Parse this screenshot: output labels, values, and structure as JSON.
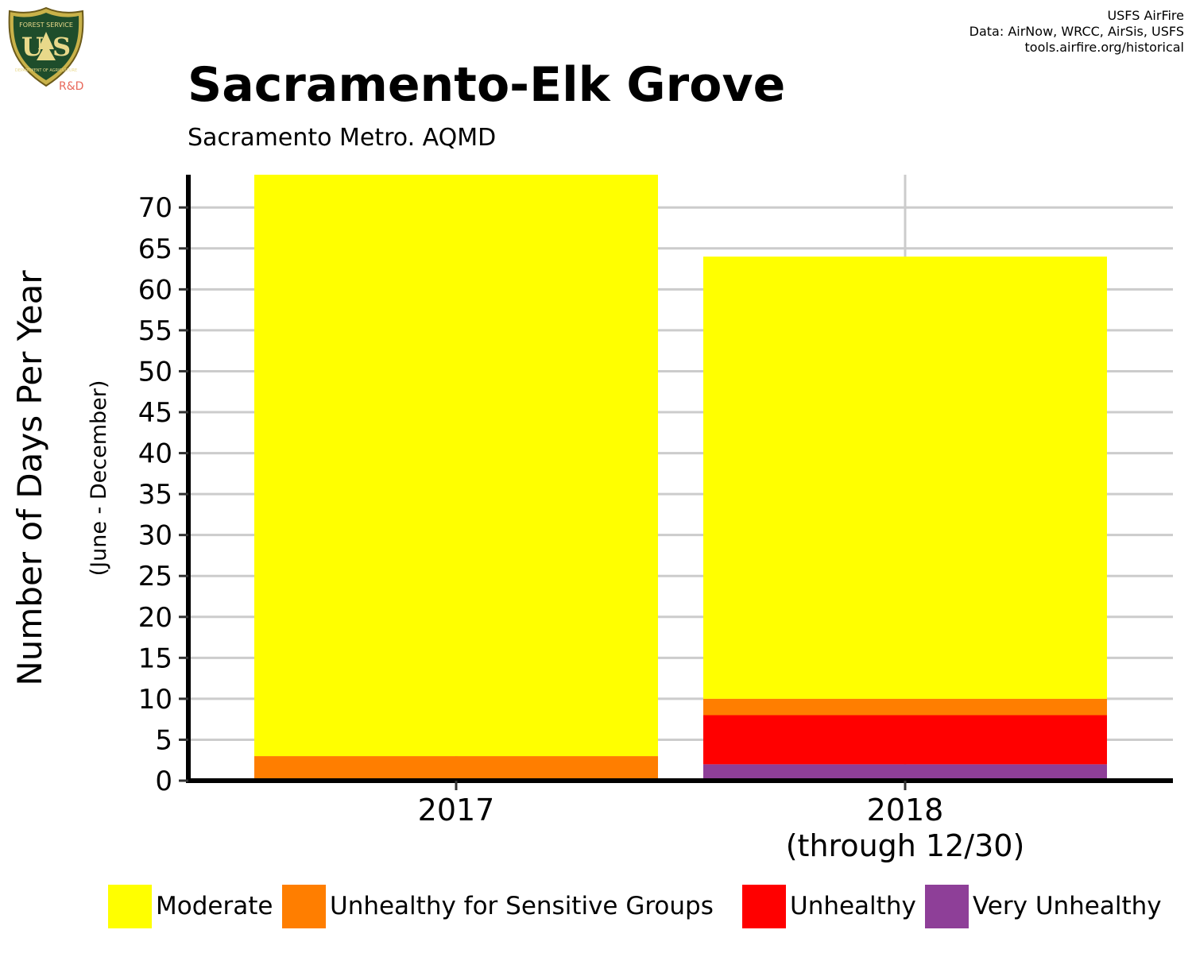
{
  "header": {
    "logo_text": "U S",
    "logo_arc_top": "FOREST SERVICE",
    "logo_arc_bottom": "DEPARTMENT OF AGRICULTURE",
    "logo_suffix": "R&D",
    "credits": [
      "USFS AirFire",
      "Data: AirNow, WRCC, AirSis, USFS",
      "tools.airfire.org/historical"
    ]
  },
  "chart_data": {
    "type": "bar",
    "stacked": true,
    "title": "Sacramento-Elk Grove",
    "subtitle": "Sacramento Metro. AQMD",
    "ylabel": "Number of Days Per Year",
    "ylabel_sub": "(June - December)",
    "categories": [
      [
        "2017"
      ],
      [
        "2018",
        "(through 12/30)"
      ]
    ],
    "ylim": [
      0,
      74
    ],
    "yticks": [
      0,
      5,
      10,
      15,
      20,
      25,
      30,
      35,
      40,
      45,
      50,
      55,
      60,
      65,
      70
    ],
    "grid": true,
    "legend_position": "bottom",
    "series": [
      {
        "name": "Very Unhealthy",
        "color": "#8e3f98",
        "values": [
          0,
          2
        ]
      },
      {
        "name": "Unhealthy",
        "color": "#ff0000",
        "values": [
          0,
          6
        ]
      },
      {
        "name": "Unhealthy for Sensitive Groups",
        "color": "#ff7e00",
        "values": [
          3,
          2
        ]
      },
      {
        "name": "Moderate",
        "color": "#ffff00",
        "values": [
          71,
          54
        ]
      }
    ],
    "legend_order": [
      "Moderate",
      "Unhealthy for Sensitive Groups",
      "Unhealthy",
      "Very Unhealthy"
    ]
  }
}
